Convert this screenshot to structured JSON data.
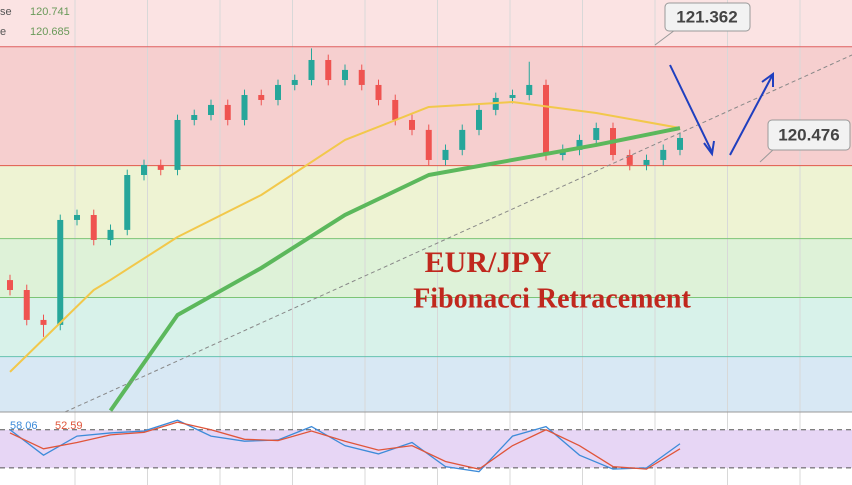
{
  "chart_data": {
    "type": "candlestick",
    "title": "EUR/JPY",
    "subtitle": "Fibonacci Retracement",
    "ylim": [
      118.64,
      121.71
    ],
    "open": [
      119.623,
      119.549,
      119.326,
      119.289,
      120.071,
      120.108,
      119.922,
      119.997,
      120.406,
      120.481,
      120.444,
      120.816,
      120.853,
      120.928,
      120.816,
      121.002,
      120.965,
      121.077,
      121.114,
      121.263,
      121.114,
      121.189,
      121.077,
      120.965,
      120.816,
      120.742,
      120.518,
      120.593,
      120.742,
      120.891,
      120.98,
      121.002,
      121.077,
      120.555,
      120.593,
      120.667,
      120.756,
      120.555,
      120.481,
      120.518,
      120.593
    ],
    "high": [
      119.663,
      119.589,
      119.366,
      120.111,
      120.148,
      120.148,
      120.037,
      120.446,
      120.521,
      120.521,
      120.856,
      120.893,
      120.968,
      120.968,
      121.042,
      121.042,
      121.117,
      121.154,
      121.35,
      121.303,
      121.229,
      121.229,
      121.117,
      121.005,
      120.856,
      120.782,
      120.633,
      120.782,
      120.931,
      121.02,
      121.042,
      121.25,
      121.117,
      120.633,
      120.707,
      120.796,
      120.796,
      120.595,
      120.558,
      120.633,
      120.722
    ],
    "low": [
      119.509,
      119.286,
      119.2,
      119.249,
      120.031,
      119.882,
      119.882,
      119.957,
      120.366,
      120.404,
      120.404,
      120.776,
      120.813,
      120.776,
      120.776,
      120.925,
      120.925,
      121.037,
      121.074,
      121.074,
      121.074,
      121.037,
      120.925,
      120.776,
      120.702,
      120.478,
      120.478,
      120.553,
      120.702,
      120.851,
      120.94,
      120.962,
      120.515,
      120.515,
      120.553,
      120.627,
      120.515,
      120.441,
      120.441,
      120.478,
      120.553
    ],
    "close": [
      119.549,
      119.326,
      119.289,
      120.071,
      120.108,
      119.922,
      119.997,
      120.406,
      120.481,
      120.444,
      120.816,
      120.853,
      120.928,
      120.816,
      121.002,
      120.965,
      121.077,
      121.114,
      121.263,
      121.114,
      121.189,
      121.077,
      120.965,
      120.816,
      120.742,
      120.518,
      120.593,
      120.742,
      120.891,
      120.98,
      121.002,
      121.077,
      120.555,
      120.593,
      120.667,
      120.756,
      120.555,
      120.481,
      120.518,
      120.593,
      120.682
    ],
    "up_color": "#26a69a",
    "down_color": "#ef5350",
    "levels": [
      121.362,
      120.476,
      119.932,
      119.493,
      119.053
    ],
    "level_colors": [
      "#e06060",
      "#e05a4a",
      "#7cc576",
      "#7cc576",
      "#66c2b0"
    ],
    "zone_colors": [
      "#fbe3e3",
      "#f6cfcf",
      "#eef3d3",
      "#def2d8",
      "#d8f2ea",
      "#d8e8f4"
    ],
    "lines": [
      {
        "color": "#f2c84b",
        "width": 2,
        "x": [
          0,
          5,
          6,
          10,
          15,
          20,
          25,
          30,
          35,
          40
        ],
        "values": [
          118.939,
          119.549,
          119.624,
          119.944,
          120.257,
          120.667,
          120.913,
          120.95,
          120.868,
          120.756
        ]
      },
      {
        "color": "#5cb85c",
        "width": 4,
        "x": [
          0,
          5,
          6,
          10,
          15,
          20,
          25,
          30,
          35,
          40
        ],
        "values": [
          null,
          null,
          118.65,
          119.363,
          119.713,
          120.108,
          120.406,
          120.518,
          120.63,
          120.756
        ]
      }
    ],
    "legend": [
      {
        "name": "se",
        "value": 120.741
      },
      {
        "name": "e",
        "value": 120.685
      }
    ],
    "oscillator": {
      "ylim": [
        -7,
        108
      ],
      "levels": [
        20,
        80
      ],
      "x": [
        0,
        2,
        4,
        6,
        8,
        10,
        12,
        14,
        16,
        18,
        20,
        22,
        24,
        26,
        28,
        30,
        32,
        34,
        36,
        38,
        40
      ],
      "series": [
        {
          "color": "#3d8bd9",
          "values": [
            80,
            40,
            70,
            75,
            78,
            95,
            70,
            62,
            64,
            85,
            55,
            42,
            60,
            22,
            14,
            70,
            85,
            40,
            18,
            20,
            58
          ],
          "label": 58.06
        },
        {
          "color": "#e0553a",
          "values": [
            75,
            50,
            60,
            72,
            76,
            92,
            80,
            65,
            63,
            78,
            62,
            48,
            55,
            30,
            18,
            55,
            80,
            55,
            22,
            18,
            50
          ],
          "label": 52.59
        }
      ]
    }
  }
}
